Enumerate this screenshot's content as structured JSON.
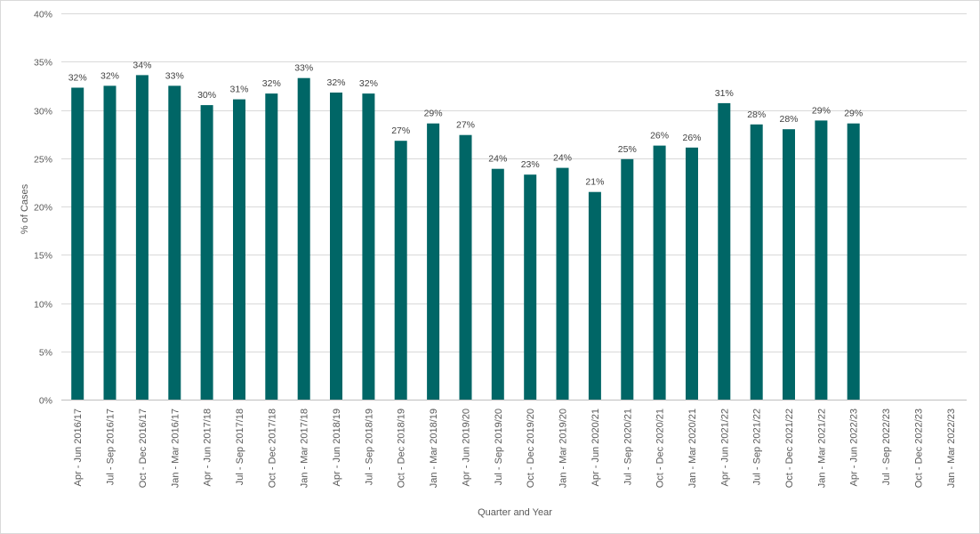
{
  "chart_data": {
    "type": "bar",
    "xlabel": "Quarter and Year",
    "ylabel": "% of Cases",
    "ylim": [
      0,
      40
    ],
    "yticks": [
      "0%",
      "5%",
      "10%",
      "15%",
      "20%",
      "25%",
      "30%",
      "35%",
      "40%"
    ],
    "grid": true,
    "legend": "none",
    "bar_color": "#006666",
    "categories": [
      "Apr - Jun 2016/17",
      "Jul - Sep 2016/17",
      "Oct - Dec 2016/17",
      "Jan - Mar 2016/17",
      "Apr - Jun 2017/18",
      "Jul - Sep 2017/18",
      "Oct - Dec 2017/18",
      "Jan - Mar 2017/18",
      "Apr - Jun 2018/19",
      "Jul - Sep 2018/19",
      "Oct - Dec 2018/19",
      "Jan - Mar 2018/19",
      "Apr - Jun 2019/20",
      "Jul - Sep 2019/20",
      "Oct - Dec 2019/20",
      "Jan - Mar 2019/20",
      "Apr - Jun 2020/21",
      "Jul - Sep 2020/21",
      "Oct - Dec 2020/21",
      "Jan - Mar 2020/21",
      "Apr - Jun 2021/22",
      "Jul - Sep 2021/22",
      "Oct - Dec 2021/22",
      "Jan - Mar 2021/22",
      "Apr - Jun 2022/23",
      "Jul - Sep 2022/23",
      "Oct - Dec 2022/23",
      "Jan - Mar 2022/23"
    ],
    "values": [
      32.3,
      32.5,
      33.6,
      32.5,
      30.5,
      31.1,
      31.7,
      33.3,
      31.8,
      31.7,
      26.8,
      28.6,
      27.4,
      23.9,
      23.3,
      24.0,
      21.5,
      24.9,
      26.3,
      26.1,
      30.7,
      28.5,
      28.0,
      28.9,
      28.6,
      null,
      null,
      null
    ],
    "data_labels": [
      "32%",
      "32%",
      "34%",
      "33%",
      "30%",
      "31%",
      "32%",
      "33%",
      "32%",
      "32%",
      "27%",
      "29%",
      "27%",
      "24%",
      "23%",
      "24%",
      "21%",
      "25%",
      "26%",
      "26%",
      "31%",
      "28%",
      "28%",
      "29%",
      "29%",
      null,
      null,
      null
    ]
  }
}
